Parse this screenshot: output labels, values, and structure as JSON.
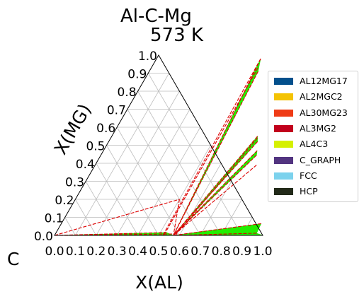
{
  "chart_data": {
    "type": "ternary-phase-diagram",
    "title": "Al-C-Mg",
    "subtitle": "573  K",
    "components": [
      "AL",
      "MG",
      "C"
    ],
    "xlabel": "X(AL)",
    "ylabel": "X(MG)",
    "corner_label": "C",
    "xlim": [
      0.0,
      1.0
    ],
    "ylim": [
      0.0,
      1.0
    ],
    "xticks": [
      "0.0",
      "0.1",
      "0.2",
      "0.3",
      "0.4",
      "0.5",
      "0.6",
      "0.7",
      "0.8",
      "0.9",
      "1.0"
    ],
    "yticks": [
      "0.0",
      "0.1",
      "0.2",
      "0.3",
      "0.4",
      "0.5",
      "0.6",
      "0.7",
      "0.8",
      "0.9",
      "1.0"
    ],
    "grid": true,
    "legend_position": "right",
    "legend": [
      {
        "name": "AL12MG17",
        "color": "#03508c"
      },
      {
        "name": "AL2MGC2",
        "color": "#f4c303"
      },
      {
        "name": "AL30MG23",
        "color": "#ef3b16"
      },
      {
        "name": "AL3MG2",
        "color": "#c1001c"
      },
      {
        "name": "AL4C3",
        "color": "#d5f000"
      },
      {
        "name": "C_GRAPH",
        "color": "#523480"
      },
      {
        "name": "FCC",
        "color": "#7cd2ed"
      },
      {
        "name": "HCP",
        "color": "#222a19"
      }
    ],
    "three_phase_regions_color": "#22ee00",
    "tie_line_color": "#dd0000",
    "regions": [
      {
        "points": [
          [
            0,
            0
          ],
          [
            0.571,
            0
          ],
          [
            0.53,
            0.016
          ]
        ]
      },
      {
        "points": [
          [
            0.571,
            0
          ],
          [
            1.0,
            0
          ],
          [
            0.965,
            0.012
          ]
        ]
      },
      {
        "points": [
          [
            0.571,
            0
          ],
          [
            0.965,
            0.012
          ],
          [
            0.96,
            0.065
          ]
        ]
      },
      {
        "points": [
          [
            0.571,
            0
          ],
          [
            0.5,
            0.98
          ],
          [
            0.523,
            0.91
          ]
        ]
      },
      {
        "points": [
          [
            0.571,
            0
          ],
          [
            0.7,
            0.55
          ],
          [
            0.715,
            0.52
          ]
        ]
      },
      {
        "points": [
          [
            0.571,
            0
          ],
          [
            0.738,
            0.47
          ],
          [
            0.748,
            0.445
          ]
        ]
      }
    ],
    "tie_lines": [
      {
        "points": [
          [
            0,
            0
          ],
          [
            0.575,
            0.008
          ]
        ]
      },
      {
        "points": [
          [
            0,
            0
          ],
          [
            0.53,
            0.016
          ]
        ]
      },
      {
        "points": [
          [
            0,
            0
          ],
          [
            0.5,
            0.2
          ]
        ]
      },
      {
        "points": [
          [
            0.5,
            0.2
          ],
          [
            0.571,
            0
          ]
        ]
      },
      {
        "points": [
          [
            0.5,
            0.98
          ],
          [
            0.52,
            0.0
          ]
        ]
      },
      {
        "points": [
          [
            0.512,
            0.93
          ],
          [
            0.525,
            0.0
          ]
        ]
      },
      {
        "points": [
          [
            0.523,
            0.91
          ],
          [
            0.571,
            0
          ]
        ]
      },
      {
        "points": [
          [
            0.5,
            0.98
          ],
          [
            0.571,
            0
          ]
        ]
      },
      {
        "points": [
          [
            0.7,
            0.55
          ],
          [
            0.571,
            0
          ]
        ]
      },
      {
        "points": [
          [
            0.705,
            0.54
          ],
          [
            0.58,
            0.0
          ]
        ]
      },
      {
        "points": [
          [
            0.715,
            0.52
          ],
          [
            0.571,
            0
          ]
        ]
      },
      {
        "points": [
          [
            0.738,
            0.47
          ],
          [
            0.571,
            0
          ]
        ]
      },
      {
        "points": [
          [
            0.748,
            0.445
          ],
          [
            0.571,
            0
          ]
        ]
      },
      {
        "points": [
          [
            0.775,
            0.39
          ],
          [
            0.571,
            0
          ]
        ]
      },
      {
        "points": [
          [
            0.965,
            0.012
          ],
          [
            0.571,
            0
          ]
        ]
      },
      {
        "points": [
          [
            0.96,
            0.065
          ],
          [
            0.571,
            0
          ]
        ]
      },
      {
        "points": [
          [
            0.571,
            0
          ],
          [
            0.571,
            0.0
          ]
        ]
      }
    ]
  }
}
